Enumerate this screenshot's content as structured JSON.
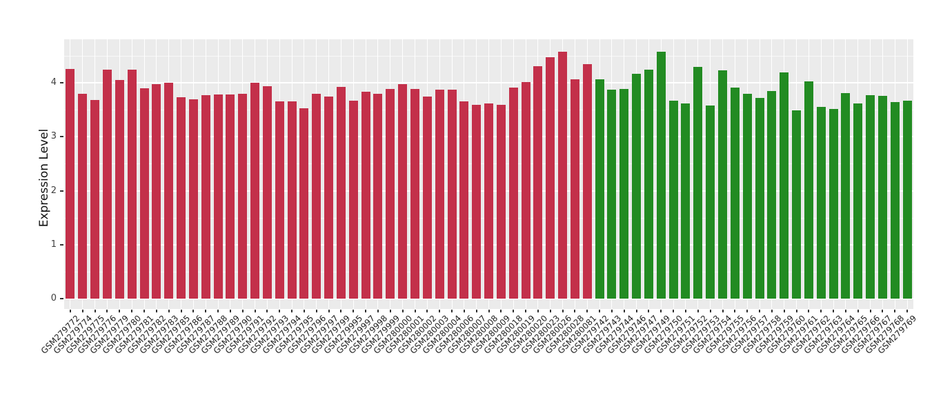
{
  "chart": {
    "panel_bg": "#EBEBEB",
    "grid_major_color": "#FFFFFF",
    "grid_minor_color": "#F8F8F8",
    "tick_color": "#333333",
    "axis_text_color": "#404040"
  },
  "chart_data": {
    "type": "bar",
    "title": "",
    "xlabel": "",
    "ylabel": "Expression Level",
    "ylim": [
      0,
      4.8
    ],
    "yticks": [
      0,
      1,
      2,
      3,
      4
    ],
    "grid": true,
    "legend_position": "none",
    "series": [
      {
        "name": "group-1-red",
        "color": "#C3304A",
        "categories": [
          "GSM279772",
          "GSM279774",
          "GSM279775",
          "GSM279776",
          "GSM279779",
          "GSM279780",
          "GSM279781",
          "GSM279782",
          "GSM279783",
          "GSM279785",
          "GSM279786",
          "GSM279787",
          "GSM279788",
          "GSM279789",
          "GSM279790",
          "GSM279791",
          "GSM279792",
          "GSM279793",
          "GSM279794",
          "GSM279795",
          "GSM279796",
          "GSM279797",
          "GSM279799",
          "GSM279995",
          "GSM279997",
          "GSM279998",
          "GSM279999",
          "GSM280000",
          "GSM280001",
          "GSM280002",
          "GSM280003",
          "GSM280004",
          "GSM280006",
          "GSM280007",
          "GSM280008",
          "GSM280009",
          "GSM280018",
          "GSM280019",
          "GSM280020",
          "GSM280023",
          "GSM280026",
          "GSM280028",
          "GSM280081"
        ],
        "values": [
          4.25,
          3.8,
          3.68,
          4.24,
          4.05,
          4.24,
          3.9,
          3.97,
          4.0,
          3.73,
          3.7,
          3.77,
          3.78,
          3.78,
          3.8,
          4.0,
          3.94,
          3.66,
          3.65,
          3.53,
          3.79,
          3.74,
          3.92,
          3.67,
          3.84,
          3.8,
          3.89,
          3.97,
          3.88,
          3.74,
          3.87,
          3.87,
          3.65,
          3.59,
          3.62,
          3.59,
          3.91,
          4.01,
          4.31,
          4.47,
          4.58,
          4.06,
          4.34
        ]
      },
      {
        "name": "group-2-green",
        "color": "#228B22",
        "categories": [
          "GSM279742",
          "GSM279743",
          "GSM279744",
          "GSM279746",
          "GSM279747",
          "GSM279749",
          "GSM279750",
          "GSM279751",
          "GSM279752",
          "GSM279753",
          "GSM279754",
          "GSM279755",
          "GSM279756",
          "GSM279757",
          "GSM279758",
          "GSM279759",
          "GSM279760",
          "GSM279761",
          "GSM279762",
          "GSM279763",
          "GSM279764",
          "GSM279765",
          "GSM279766",
          "GSM279767",
          "GSM279768",
          "GSM279769"
        ],
        "values": [
          4.06,
          3.87,
          3.89,
          4.17,
          4.24,
          4.57,
          3.67,
          3.62,
          4.3,
          3.58,
          4.23,
          3.91,
          3.8,
          3.72,
          3.85,
          4.19,
          3.49,
          4.02,
          3.55,
          3.52,
          3.81,
          3.62,
          3.77,
          3.76,
          3.64,
          3.67
        ]
      }
    ]
  }
}
